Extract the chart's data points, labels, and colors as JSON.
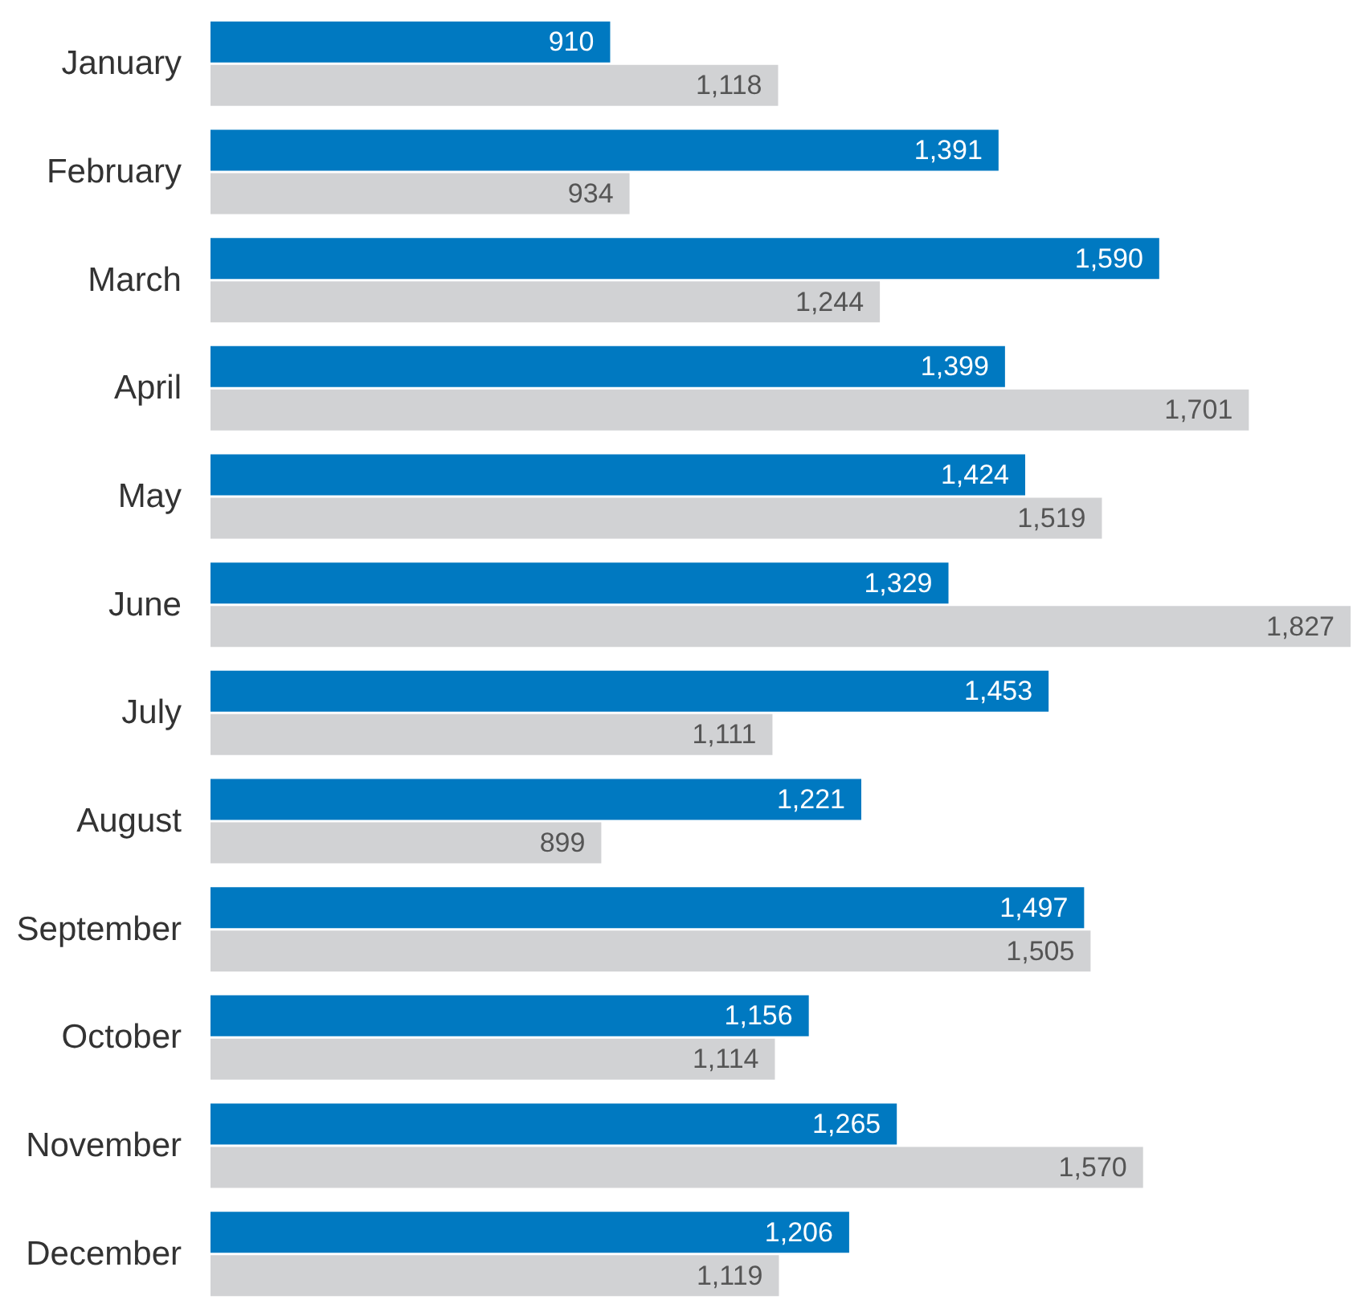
{
  "chart_data": {
    "type": "bar",
    "orientation": "horizontal",
    "categories": [
      "January",
      "February",
      "March",
      "April",
      "May",
      "June",
      "July",
      "August",
      "September",
      "October",
      "November",
      "December"
    ],
    "series": [
      {
        "color": "#0079c1",
        "values": [
          910,
          1391,
          1590,
          1399,
          1424,
          1329,
          1453,
          1221,
          1497,
          1156,
          1265,
          1206
        ],
        "value_labels": [
          "910",
          "1,391",
          "1,590",
          "1,399",
          "1,424",
          "1,329",
          "1,453",
          "1,221",
          "1,497",
          "1,156",
          "1,265",
          "1,206"
        ]
      },
      {
        "color": "#d1d2d4",
        "values": [
          1118,
          934,
          1244,
          1701,
          1519,
          1827,
          1111,
          899,
          1505,
          1114,
          1570,
          1119
        ],
        "value_labels": [
          "1,118",
          "934",
          "1,244",
          "1,701",
          "1,519",
          "1,827",
          "1,111",
          "899",
          "1,505",
          "1,114",
          "1,570",
          "1,119"
        ]
      }
    ],
    "xlim": [
      415,
      1830
    ],
    "tick_labels": "y"
  }
}
